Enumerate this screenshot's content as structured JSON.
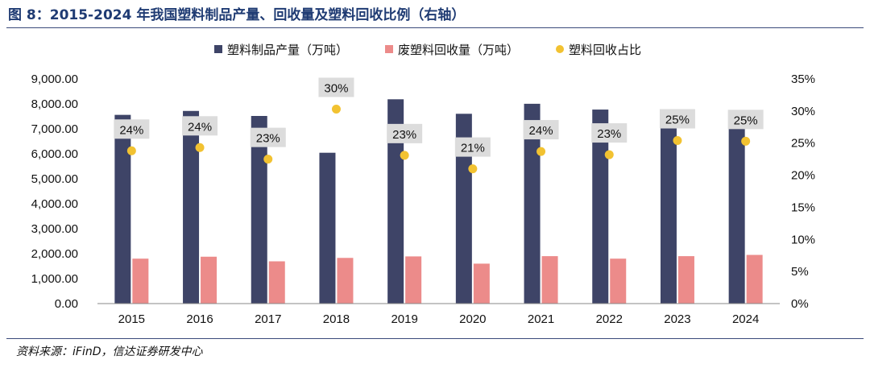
{
  "figure": {
    "title": "图 8：2015-2024 年我国塑料制品产量、回收量及塑料回收比例（右轴）",
    "source": "资料来源：iFinD，信达证券研发中心"
  },
  "chart_data": {
    "type": "bar",
    "categories": [
      "2015",
      "2016",
      "2017",
      "2018",
      "2019",
      "2020",
      "2021",
      "2022",
      "2023",
      "2024"
    ],
    "series": [
      {
        "name": "塑料制品产量（万吨）",
        "kind": "bar",
        "axis": "left",
        "color": "#3e4467",
        "values": [
          7560,
          7717,
          7516,
          6042,
          8184,
          7603,
          8004,
          7772,
          7489,
          7508
        ]
      },
      {
        "name": "废塑料回收量（万吨）",
        "kind": "bar",
        "axis": "left",
        "color": "#ec8b8a",
        "values": [
          1800,
          1878,
          1693,
          1830,
          1890,
          1600,
          1900,
          1800,
          1900,
          1950
        ]
      },
      {
        "name": "塑料回收占比",
        "kind": "scatter",
        "axis": "right",
        "color": "#f2c231",
        "values": [
          23.8,
          24.3,
          22.5,
          30.3,
          23.1,
          21.0,
          23.7,
          23.2,
          25.4,
          25.3
        ],
        "labels": [
          "24%",
          "24%",
          "23%",
          "30%",
          "23%",
          "21%",
          "24%",
          "23%",
          "25%",
          "25%"
        ]
      }
    ],
    "yaxis_left": {
      "min": 0,
      "max": 9000,
      "step": 1000,
      "ticks": [
        "0.00",
        "1,000.00",
        "2,000.00",
        "3,000.00",
        "4,000.00",
        "5,000.00",
        "6,000.00",
        "7,000.00",
        "8,000.00",
        "9,000.00"
      ]
    },
    "yaxis_right": {
      "min": 0,
      "max": 35,
      "step": 5,
      "ticks": [
        "0%",
        "5%",
        "10%",
        "15%",
        "20%",
        "25%",
        "30%",
        "35%"
      ]
    },
    "legend_position": "top-center"
  }
}
